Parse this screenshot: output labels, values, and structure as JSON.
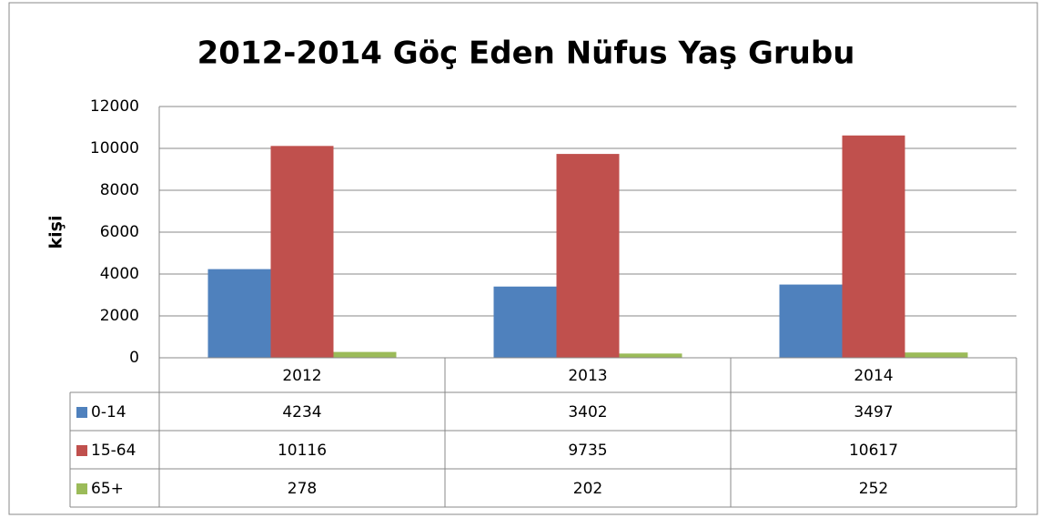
{
  "chart_data": {
    "type": "bar",
    "title": "2012-2014 Göç Eden Nüfus Yaş Grubu",
    "y_label": "kişi",
    "categories": [
      "2012",
      "2013",
      "2014"
    ],
    "series": [
      {
        "name": "0-14",
        "color": "#4f81bd",
        "values": [
          4234,
          3402,
          3497
        ]
      },
      {
        "name": "15-64",
        "color": "#c0504d",
        "values": [
          10116,
          9735,
          10617
        ]
      },
      {
        "name": "65+",
        "color": "#9bbb59",
        "values": [
          278,
          202,
          252
        ]
      }
    ],
    "ylim": [
      0,
      12000
    ],
    "yticks": [
      0,
      2000,
      4000,
      6000,
      8000,
      10000,
      12000
    ],
    "grid": true
  }
}
